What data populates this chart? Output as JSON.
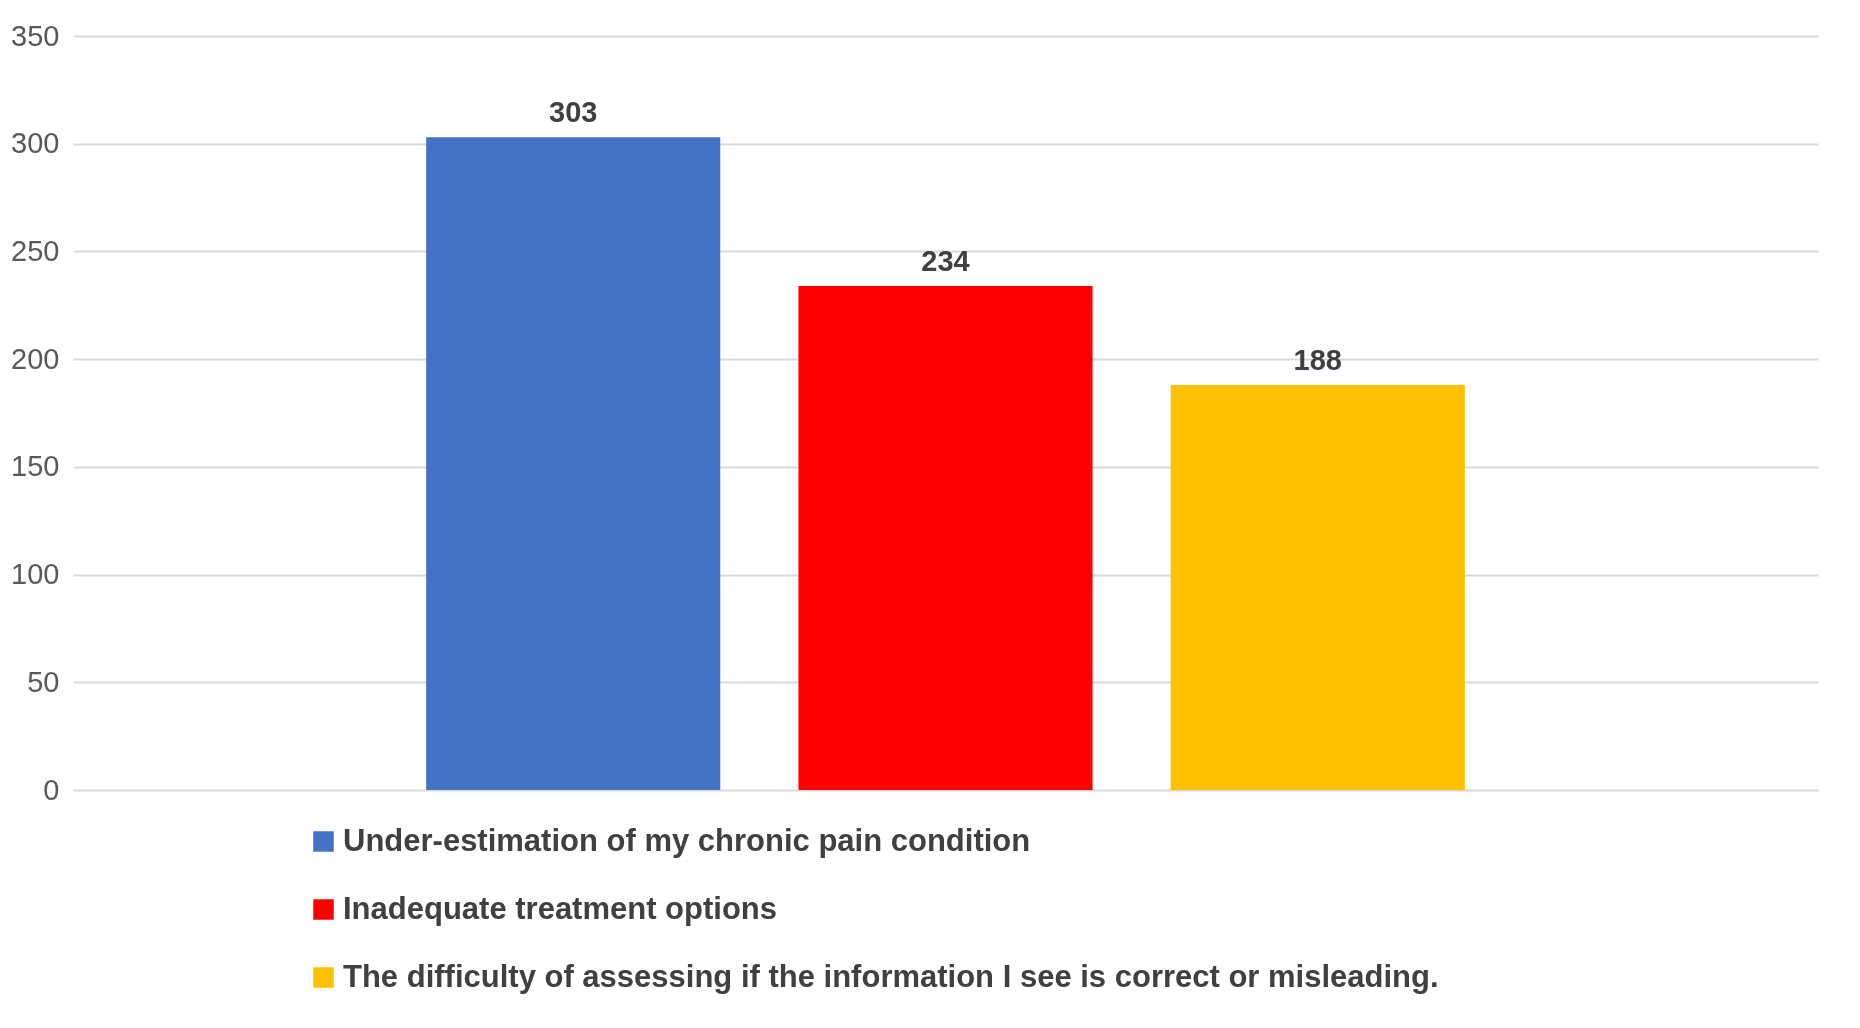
{
  "chart_data": {
    "type": "bar",
    "categories": [
      null
    ],
    "series": [
      {
        "name": "Under-estimation of my chronic pain condition",
        "color": "#4472c4",
        "values": [
          303
        ]
      },
      {
        "name": "Inadequate treatment options",
        "color": "#ff0000",
        "values": [
          234
        ]
      },
      {
        "name": "The difficulty of assessing if the information I see is correct or misleading.",
        "color": "#ffc000",
        "values": [
          188
        ]
      }
    ],
    "ylim": [
      0,
      350
    ],
    "yticks": [
      0,
      50,
      100,
      150,
      200,
      250,
      300,
      350
    ],
    "grid": "y",
    "legend": "bottom",
    "data_labels": true,
    "tick_labels": "y"
  }
}
